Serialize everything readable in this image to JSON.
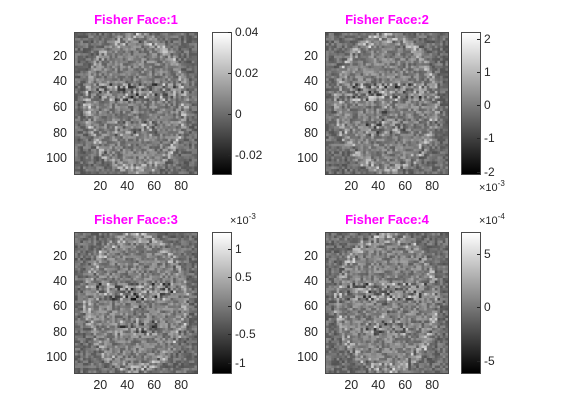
{
  "chart_data": [
    {
      "type": "heatmap",
      "title": "Fisher Face:1",
      "x_ticks": [
        20,
        40,
        60,
        80
      ],
      "y_ticks": [
        20,
        40,
        60,
        80,
        100
      ],
      "xlim": [
        0.5,
        92.5
      ],
      "ylim": [
        0.5,
        112.5
      ],
      "colorbar": {
        "ticks": [
          "0.04",
          "0.02",
          "0",
          "-0.02"
        ],
        "tick_values": [
          0.04,
          0.02,
          0,
          -0.02
        ],
        "range": [
          -0.03,
          0.04
        ],
        "multiplier": ""
      },
      "colormap": "gray"
    },
    {
      "type": "heatmap",
      "title": "Fisher Face:2",
      "x_ticks": [
        20,
        40,
        60,
        80
      ],
      "y_ticks": [
        20,
        40,
        60,
        80,
        100
      ],
      "xlim": [
        0.5,
        92.5
      ],
      "ylim": [
        0.5,
        112.5
      ],
      "colorbar": {
        "ticks": [
          "2",
          "1",
          "0",
          "-1",
          "-2"
        ],
        "tick_values": [
          2,
          1,
          0,
          -1,
          -2
        ],
        "range": [
          -2.1,
          2.2
        ],
        "multiplier": "×10",
        "multiplier_exp": "-3",
        "multiplier_position": "bottom"
      },
      "colormap": "gray"
    },
    {
      "type": "heatmap",
      "title": "Fisher Face:3",
      "x_ticks": [
        20,
        40,
        60,
        80
      ],
      "y_ticks": [
        20,
        40,
        60,
        80,
        100
      ],
      "xlim": [
        0.5,
        92.5
      ],
      "ylim": [
        0.5,
        112.5
      ],
      "colorbar": {
        "ticks": [
          "1",
          "0.5",
          "0",
          "-0.5",
          "-1"
        ],
        "tick_values": [
          1,
          0.5,
          0,
          -0.5,
          -1
        ],
        "range": [
          -1.2,
          1.3
        ],
        "multiplier": "×10",
        "multiplier_exp": "-3",
        "multiplier_position": "top"
      },
      "colormap": "gray"
    },
    {
      "type": "heatmap",
      "title": "Fisher Face:4",
      "x_ticks": [
        20,
        40,
        60,
        80
      ],
      "y_ticks": [
        20,
        40,
        60,
        80,
        100
      ],
      "xlim": [
        0.5,
        92.5
      ],
      "ylim": [
        0.5,
        112.5
      ],
      "colorbar": {
        "ticks": [
          "5",
          "0",
          "-5"
        ],
        "tick_values": [
          5,
          0,
          -5
        ],
        "range": [
          -6.2,
          7
        ],
        "multiplier": "×10",
        "multiplier_exp": "-4",
        "multiplier_position": "top"
      },
      "colormap": "gray"
    }
  ]
}
